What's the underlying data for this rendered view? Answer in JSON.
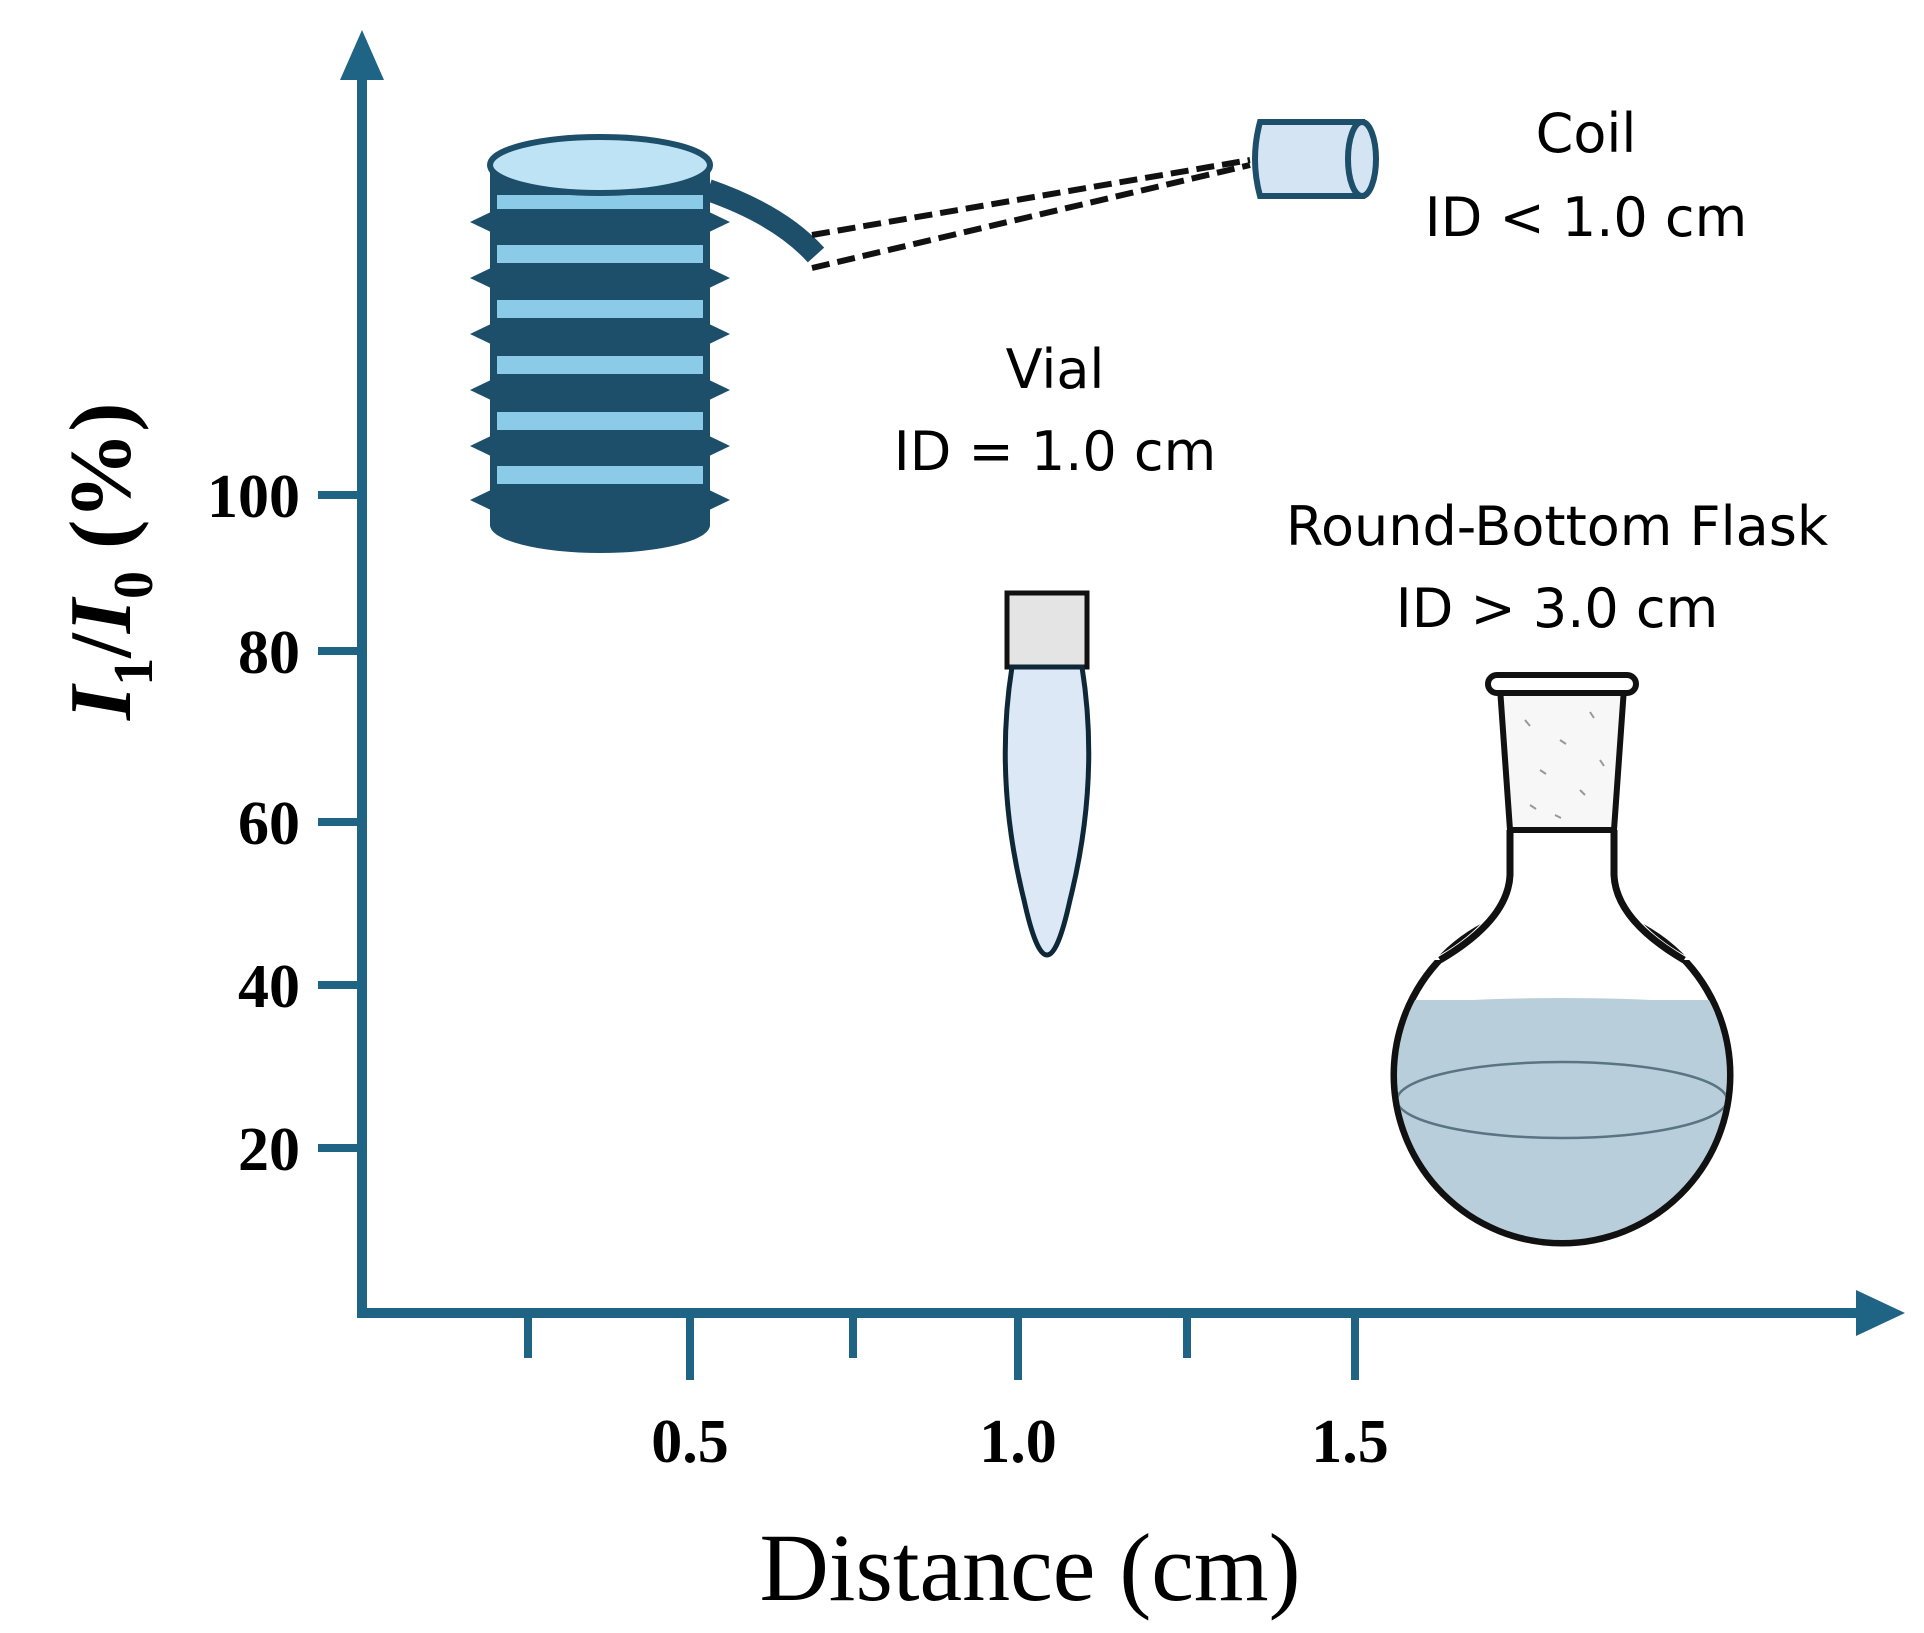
{
  "axes": {
    "y_label": {
      "i1": "I",
      "sub1": "1",
      "slash": "/",
      "i0": "I",
      "sub0": "0",
      "unit": " (%)"
    },
    "x_label": "Distance (cm)",
    "y_ticks": [
      "100",
      "80",
      "60",
      "40",
      "20"
    ],
    "x_ticks": [
      "0.5",
      "1.0",
      "1.5"
    ]
  },
  "chart_data": {
    "type": "scatter",
    "xlabel": "Distance (cm)",
    "ylabel": "I1/I0 (%)",
    "y_ticks": [
      20,
      40,
      60,
      80,
      100
    ],
    "x_ticks": [
      0.5,
      1.0,
      1.5
    ]
  },
  "labels": {
    "coil": {
      "name": "Coil",
      "id": "ID < 1.0 cm"
    },
    "vial": {
      "name": "Vial",
      "id": "ID = 1.0 cm"
    },
    "flask": {
      "name": "Round-Bottom Flask",
      "id": "ID > 3.0 cm"
    }
  },
  "colors": {
    "axis": "#1f6385",
    "coil_dark": "#1d4f6a",
    "coil_light": "#8ccbe8",
    "coil_top": "#bde3f5",
    "vial_fill": "#dce8f6",
    "vial_cap": "#e4e4e4",
    "flask_liquid": "#b8cfdb"
  }
}
